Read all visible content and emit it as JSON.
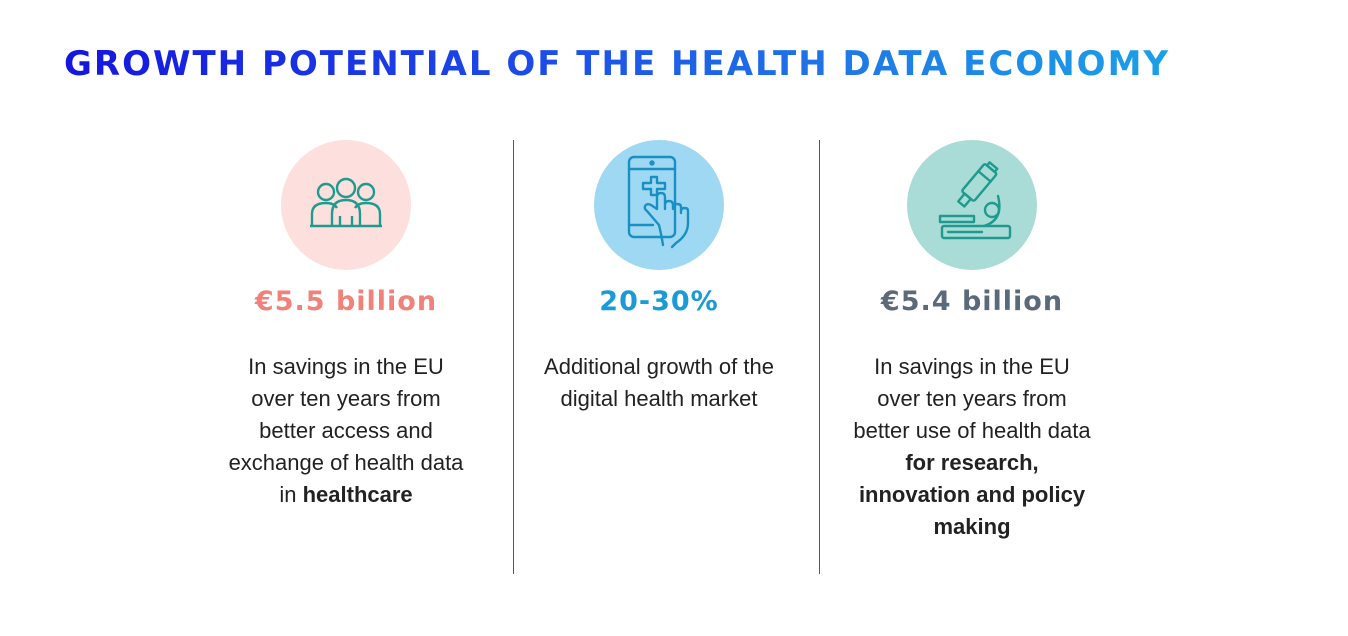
{
  "title": "GROWTH POTENTIAL OF THE HEALTH DATA ECONOMY",
  "colors": {
    "title_gradient_start": "#1515e0",
    "title_gradient_end": "#1aa0e8",
    "card1_circle": "#fde0de",
    "card1_accent": "#f0827a",
    "card2_circle": "#9ed8f3",
    "card2_accent": "#1a9ad6",
    "card3_circle": "#a9dcd6",
    "card3_accent": "#5a6a7a"
  },
  "cards": [
    {
      "icon": "people-group-icon",
      "stat": "€5.5 billion",
      "desc_plain": "In savings in the EU over ten years from better access and exchange of health data in",
      "desc_bold": "healthcare"
    },
    {
      "icon": "smartphone-health-icon",
      "stat": "20-30%",
      "desc_plain": "Additional growth of the digital health market",
      "desc_bold": ""
    },
    {
      "icon": "microscope-icon",
      "stat": "€5.4 billion",
      "desc_plain": "In savings in the EU over ten years from better use of health data",
      "desc_bold": "for research, innovation and policy making"
    }
  ]
}
